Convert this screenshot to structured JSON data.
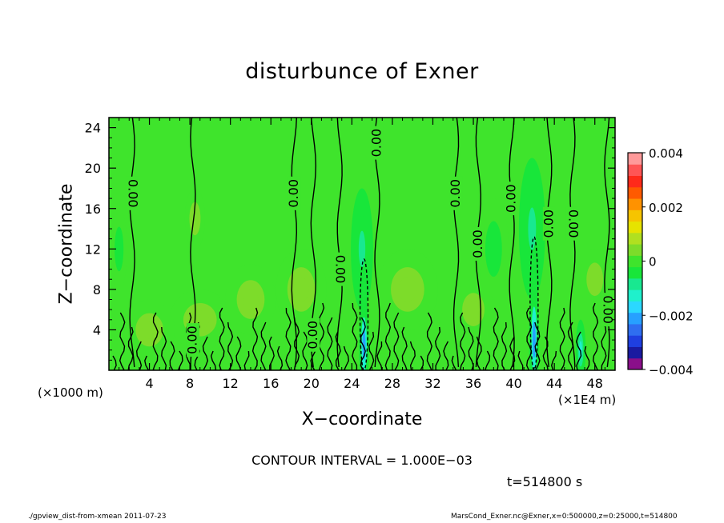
{
  "chart_data": {
    "type": "heatmap",
    "title": "disturbunce of Exner",
    "xlabel": "X−coordinate",
    "ylabel": "Z−coordinate",
    "x_unit_label": "(×1E4 m)",
    "y_unit_label": "(×1000 m)",
    "xlim": [
      0,
      50
    ],
    "ylim": [
      0,
      25
    ],
    "x_ticks": [
      4,
      8,
      12,
      16,
      20,
      24,
      28,
      32,
      36,
      40,
      44,
      48
    ],
    "y_ticks": [
      4,
      8,
      12,
      16,
      20,
      24
    ],
    "colorbar": {
      "vmin": -0.004,
      "vmax": 0.004,
      "tick_values": [
        0.004,
        0.002,
        0,
        -0.002,
        -0.004
      ],
      "tick_labels": [
        "0.004",
        "0.002",
        "0",
        "−0.002",
        "−0.004"
      ],
      "colors": [
        "#8a0f8a",
        "#1a1aa0",
        "#1f3fe0",
        "#2f6ef0",
        "#27a0ff",
        "#2bd8ff",
        "#1ff0cc",
        "#18e890",
        "#18e63a",
        "#3fe42c",
        "#7ddc2a",
        "#b0e020",
        "#e6e300",
        "#f6c400",
        "#ff9200",
        "#ff5a00",
        "#ff2a1a",
        "#ff5555",
        "#ff9a9a"
      ]
    },
    "background_value": 0,
    "contour_interval": "1.000E-03",
    "contour_labels": [
      {
        "text": "0.00",
        "x": 2.3,
        "z": 17.5,
        "rot": 90
      },
      {
        "text": "0.00",
        "x": 18.3,
        "z": 17.5,
        "rot": -90
      },
      {
        "text": "0.00",
        "x": 26.5,
        "z": 22.5,
        "rot": -90
      },
      {
        "text": "0.00",
        "x": 22.8,
        "z": 10,
        "rot": 90
      },
      {
        "text": "0.00",
        "x": 34.3,
        "z": 17.5,
        "rot": -90
      },
      {
        "text": "0.00",
        "x": 39.8,
        "z": 17,
        "rot": -90
      },
      {
        "text": "0.00",
        "x": 36.5,
        "z": 12.5,
        "rot": -90
      },
      {
        "text": "0.00",
        "x": 43.5,
        "z": 14.5,
        "rot": -90
      },
      {
        "text": "0.00",
        "x": 45.8,
        "z": 14.5,
        "rot": 90
      },
      {
        "text": "0.00",
        "x": 49.2,
        "z": 6,
        "rot": 90
      },
      {
        "text": "0.00",
        "x": 8.3,
        "z": 3,
        "rot": -90
      },
      {
        "text": "0.00",
        "x": 20.2,
        "z": 3.5,
        "rot": -90
      }
    ],
    "anomalies": [
      {
        "x": 25.2,
        "z": 2.5,
        "sx": 0.5,
        "sz": 5,
        "v": -0.0022
      },
      {
        "x": 25.0,
        "z": 12,
        "sx": 1.1,
        "sz": 6,
        "v": -0.0009
      },
      {
        "x": 42.0,
        "z": 3,
        "sx": 0.5,
        "sz": 6,
        "v": -0.0019
      },
      {
        "x": 41.8,
        "z": 14,
        "sx": 1.3,
        "sz": 7,
        "v": -0.0009
      },
      {
        "x": 46.6,
        "z": 2,
        "sx": 0.5,
        "sz": 3,
        "v": -0.0011
      },
      {
        "x": 1.0,
        "z": 12,
        "sx": 0.8,
        "sz": 4,
        "v": -0.0006
      },
      {
        "x": 38.0,
        "z": 12,
        "sx": 1.5,
        "sz": 5,
        "v": -0.0005
      },
      {
        "x": 9.0,
        "z": 5,
        "sx": 3,
        "sz": 3,
        "v": 0.0006
      },
      {
        "x": 14.0,
        "z": 7,
        "sx": 2.5,
        "sz": 3.5,
        "v": 0.0005
      },
      {
        "x": 19.0,
        "z": 8,
        "sx": 2.5,
        "sz": 4,
        "v": 0.0005
      },
      {
        "x": 29.5,
        "z": 8,
        "sx": 3,
        "sz": 4,
        "v": 0.0006
      },
      {
        "x": 36.0,
        "z": 6,
        "sx": 2,
        "sz": 3,
        "v": 0.0006
      },
      {
        "x": 4.0,
        "z": 4,
        "sx": 2.5,
        "sz": 3,
        "v": 0.0005
      },
      {
        "x": 48.0,
        "z": 9,
        "sx": 1.5,
        "sz": 3,
        "v": 0.0004
      },
      {
        "x": 8.5,
        "z": 15,
        "sx": 1,
        "sz": 3,
        "v": 0.0004
      }
    ]
  },
  "annotations": {
    "contour_interval_text": "CONTOUR INTERVAL = 1.000E−03",
    "time_text": "t=514800  s",
    "footer_left": "./gpview_dist-from-xmean  2011-07-23",
    "footer_right": "MarsCond_Exner.nc@Exner,x=0:500000,z=0:25000,t=514800"
  }
}
